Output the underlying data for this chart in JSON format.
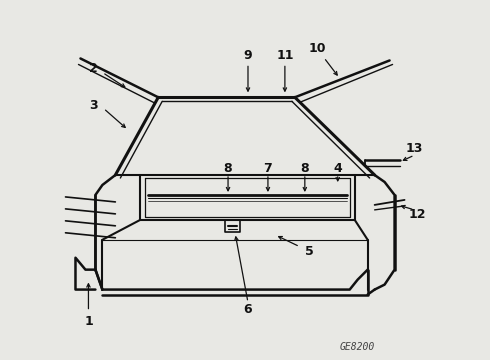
{
  "bg_color": "#e8e8e4",
  "line_color": "#111111",
  "fig_width": 4.9,
  "fig_height": 3.6,
  "dpi": 100,
  "code": "GE8200"
}
